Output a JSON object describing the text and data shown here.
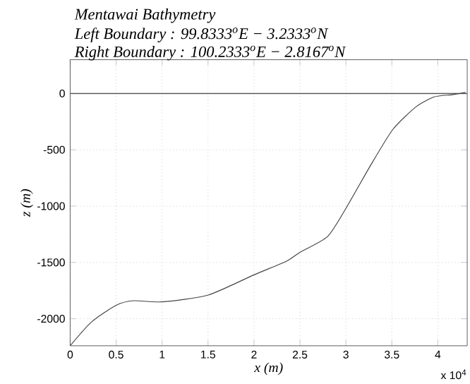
{
  "chart_data": {
    "type": "line",
    "title": "Mentawai Bathymetry",
    "subtitle": "Left Boundary : 99.8333$^{o}$E    − 3.2333$^{o}$N",
    "annotations": [
      "Right Boundary : 100.2333$^{o}$E    − 2.8167$^{o}$N",
      "x 10$^{4}$"
    ],
    "xlabel": "x (m)",
    "ylabel": "z (m)",
    "x": [
      0,
      0.23,
      0.5,
      0.69,
      1.0,
      1.5,
      2.0,
      2.35,
      2.5,
      2.8,
      3.0,
      3.26,
      3.51,
      3.76,
      3.96,
      4.16,
      4.3
    ],
    "series": [
      {
        "color": "#444444",
        "values": [
          -2240,
          -2030,
          -1880,
          -1840,
          -1850,
          -1790,
          -1610,
          -1490,
          -1410,
          -1270,
          -1020,
          -650,
          -320,
          -120,
          -30,
          -10,
          10
        ]
      }
    ],
    "xlim": [
      0,
      4.32
    ],
    "ylim": [
      -2240,
      300
    ],
    "xticks": [
      0,
      0.5,
      1,
      1.5,
      2,
      2.5,
      3,
      3.5,
      4
    ],
    "yticks": [
      -2000,
      -1500,
      -1000,
      -500,
      0
    ],
    "ref_lines": [
      {
        "axis": "y",
        "value": 0,
        "color": "#555555"
      }
    ],
    "grid": true,
    "marker": "none",
    "line_style": "solid"
  }
}
